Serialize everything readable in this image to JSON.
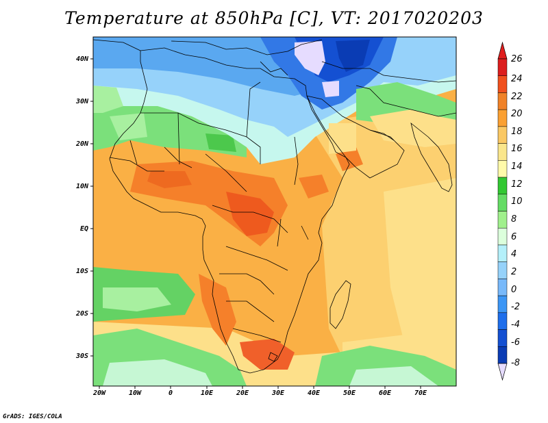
{
  "title": "Temperature at 850hPa [C], VT: 2017020203",
  "footer": "GrADS: IGES/COLA",
  "map": {
    "projection": "lat-lon",
    "lon_range": [
      -22,
      80
    ],
    "lat_range": [
      -38,
      45
    ],
    "grid": false,
    "region": "Africa, Arabia and western Indian Ocean"
  },
  "lon_ticks": [
    "20W",
    "10W",
    "0",
    "10E",
    "20E",
    "30E",
    "40E",
    "50E",
    "60E",
    "70E"
  ],
  "lat_ticks": [
    "40N",
    "30N",
    "20N",
    "10N",
    "EQ",
    "10S",
    "20S",
    "30S"
  ],
  "colorbar": {
    "labels": [
      "26",
      "24",
      "22",
      "20",
      "18",
      "16",
      "14",
      "12",
      "10",
      "8",
      "6",
      "4",
      "2",
      "0",
      "-2",
      "-4",
      "-6",
      "-8"
    ],
    "colors": [
      "#a00000",
      "#dc1e1e",
      "#f0501e",
      "#f08228",
      "#faa032",
      "#fac864",
      "#fae68c",
      "#fffaaa",
      "#32c832",
      "#64dc64",
      "#a0f08c",
      "#dcffdc",
      "#b4f0fa",
      "#96d2fa",
      "#78b9fa",
      "#3c96f5",
      "#1e6eeb",
      "#1450d2",
      "#0a3cb4",
      "#e6dcff"
    ],
    "top_arrow_color": "#e01e1e",
    "bottom_arrow_color": "#e6dcff"
  }
}
